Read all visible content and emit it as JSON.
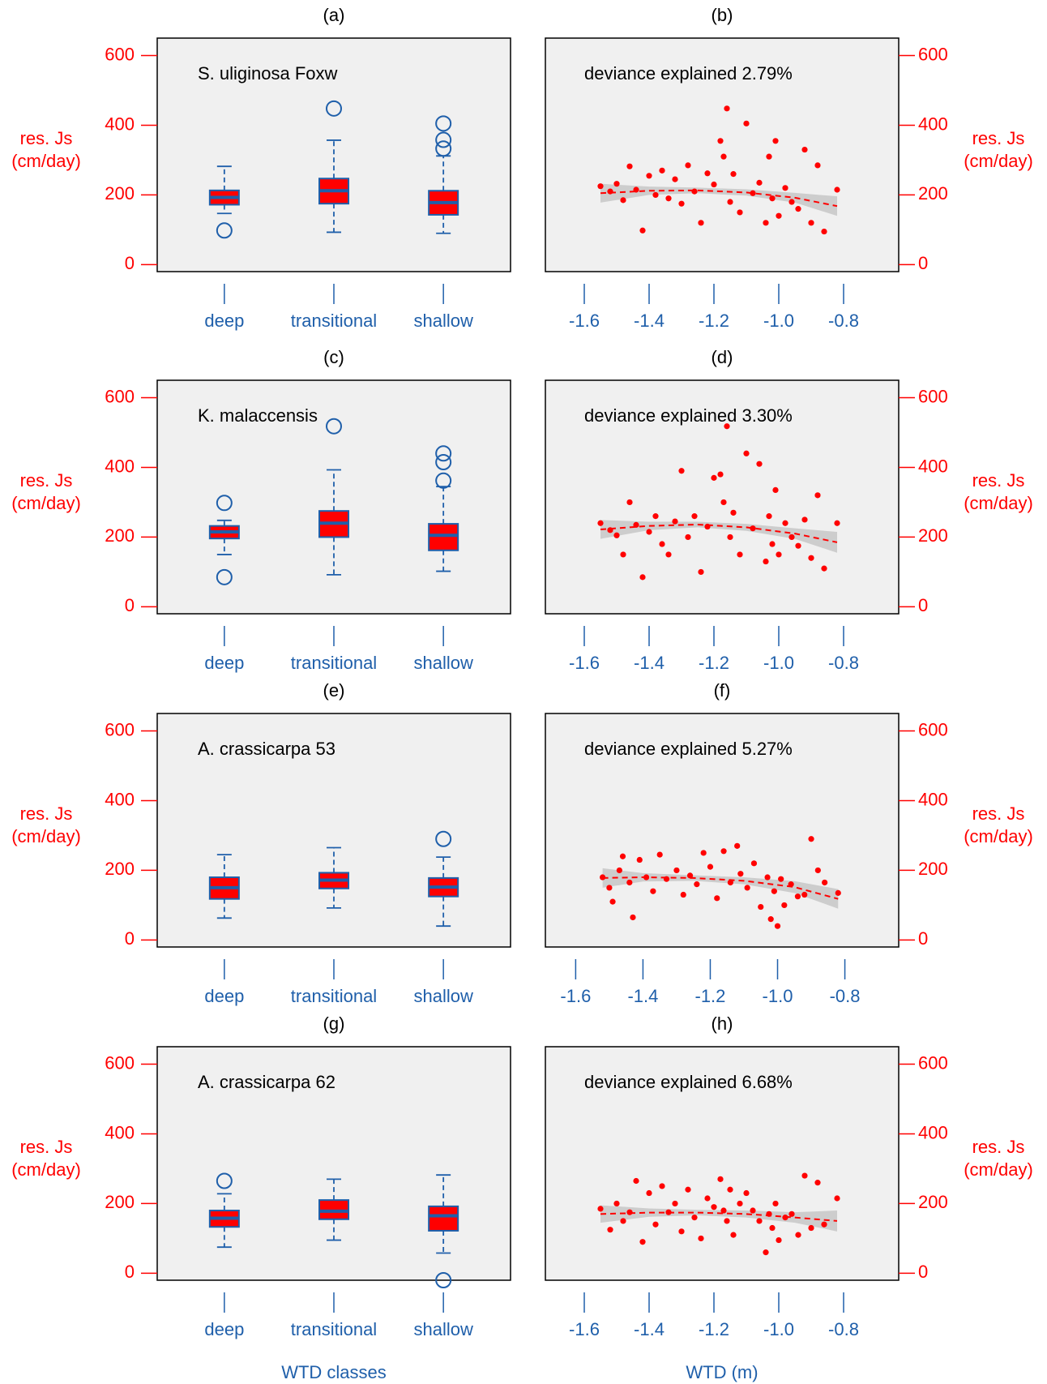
{
  "chart_data": [
    {
      "type": "box",
      "label": "(a)",
      "annotation": "S. uliginosa Foxw",
      "y_label": [
        "res. Js",
        "(cm/day)"
      ],
      "categories": [
        "deep",
        "transitional",
        "shallow"
      ],
      "boxes": [
        {
          "whislo": 147,
          "q1": 172,
          "med": 193,
          "q3": 213,
          "whishi": 282,
          "fliers": [
            98
          ]
        },
        {
          "whislo": 93,
          "q1": 175,
          "med": 212,
          "q3": 247,
          "whishi": 357,
          "fliers": [
            448
          ]
        },
        {
          "whislo": 90,
          "q1": 143,
          "med": 178,
          "q3": 212,
          "whishi": 312,
          "fliers": [
            405,
            358,
            333
          ]
        }
      ],
      "ylim": [
        -20,
        650
      ],
      "yticks": [
        0,
        200,
        400,
        600
      ],
      "color": "#ff0000",
      "edge_color": "#1f5faa"
    },
    {
      "type": "scatter",
      "label": "(b)",
      "annotation": "deviance explained 2.79%",
      "y_label": [
        "res. Js",
        "(cm/day)"
      ],
      "x": [
        -1.55,
        -1.52,
        -1.5,
        -1.48,
        -1.46,
        -1.44,
        -1.42,
        -1.4,
        -1.38,
        -1.36,
        -1.34,
        -1.32,
        -1.3,
        -1.28,
        -1.26,
        -1.24,
        -1.22,
        -1.2,
        -1.18,
        -1.17,
        -1.16,
        -1.15,
        -1.14,
        -1.12,
        -1.1,
        -1.08,
        -1.06,
        -1.04,
        -1.03,
        -1.02,
        -1.01,
        -1.0,
        -0.98,
        -0.96,
        -0.94,
        -0.92,
        -0.9,
        -0.88,
        -0.86,
        -0.82
      ],
      "y": [
        225,
        210,
        232,
        185,
        282,
        215,
        98,
        255,
        200,
        270,
        190,
        245,
        175,
        285,
        210,
        120,
        262,
        230,
        355,
        310,
        448,
        180,
        260,
        150,
        405,
        205,
        235,
        120,
        310,
        190,
        355,
        140,
        220,
        180,
        160,
        330,
        120,
        285,
        95,
        215
      ],
      "fit": {
        "x": [
          -1.55,
          -1.4,
          -1.25,
          -1.1,
          -0.95,
          -0.82
        ],
        "values": [
          205,
          212,
          213,
          207,
          192,
          168
        ],
        "lower": [
          178,
          200,
          205,
          198,
          178,
          140
        ],
        "upper": [
          232,
          224,
          221,
          216,
          206,
          196
        ]
      },
      "xlim": [
        -1.72,
        -0.63
      ],
      "xticks": [
        -1.6,
        -1.4,
        -1.2,
        {
          "value": -1,
          "label": "-1.0"
        },
        -0.8
      ],
      "ylim": [
        -20,
        650
      ],
      "yticks": [
        0,
        200,
        400,
        600
      ],
      "color": "#ff0000"
    },
    {
      "type": "box",
      "label": "(c)",
      "annotation": "K. malaccensis",
      "y_label": [
        "res. Js",
        "(cm/day)"
      ],
      "categories": [
        "deep",
        "transitional",
        "shallow"
      ],
      "boxes": [
        {
          "whislo": 150,
          "q1": 196,
          "med": 215,
          "q3": 232,
          "whishi": 248,
          "fliers": [
            298,
            85
          ]
        },
        {
          "whislo": 92,
          "q1": 200,
          "med": 240,
          "q3": 275,
          "whishi": 393,
          "fliers": [
            518
          ]
        },
        {
          "whislo": 102,
          "q1": 162,
          "med": 205,
          "q3": 238,
          "whishi": 345,
          "fliers": [
            440,
            415,
            362
          ]
        }
      ],
      "ylim": [
        -20,
        650
      ],
      "yticks": [
        0,
        200,
        400,
        600
      ],
      "color": "#ff0000",
      "edge_color": "#1f5faa"
    },
    {
      "type": "scatter",
      "label": "(d)",
      "annotation": "deviance explained 3.30%",
      "y_label": [
        "res. Js",
        "(cm/day)"
      ],
      "x": [
        -1.55,
        -1.52,
        -1.5,
        -1.48,
        -1.46,
        -1.44,
        -1.42,
        -1.4,
        -1.38,
        -1.36,
        -1.34,
        -1.32,
        -1.3,
        -1.28,
        -1.26,
        -1.24,
        -1.22,
        -1.2,
        -1.18,
        -1.17,
        -1.16,
        -1.15,
        -1.14,
        -1.12,
        -1.1,
        -1.08,
        -1.06,
        -1.04,
        -1.03,
        -1.02,
        -1.01,
        -1.0,
        -0.98,
        -0.96,
        -0.94,
        -0.92,
        -0.9,
        -0.88,
        -0.86,
        -0.82
      ],
      "y": [
        240,
        220,
        205,
        150,
        300,
        235,
        85,
        215,
        260,
        180,
        150,
        245,
        390,
        200,
        260,
        100,
        230,
        370,
        380,
        300,
        518,
        200,
        270,
        150,
        440,
        225,
        410,
        130,
        260,
        180,
        335,
        150,
        240,
        200,
        175,
        250,
        140,
        320,
        110,
        240
      ],
      "fit": {
        "x": [
          -1.55,
          -1.4,
          -1.25,
          -1.1,
          -0.95,
          -0.82
        ],
        "values": [
          222,
          232,
          236,
          228,
          210,
          185
        ],
        "lower": [
          195,
          220,
          228,
          218,
          195,
          155
        ],
        "upper": [
          249,
          244,
          244,
          238,
          225,
          215
        ]
      },
      "xlim": [
        -1.72,
        -0.63
      ],
      "xticks": [
        -1.6,
        -1.4,
        -1.2,
        {
          "value": -1,
          "label": "-1.0"
        },
        -0.8
      ],
      "ylim": [
        -20,
        650
      ],
      "yticks": [
        0,
        200,
        400,
        600
      ],
      "color": "#ff0000"
    },
    {
      "type": "box",
      "label": "(e)",
      "annotation": "A. crassicarpa 53",
      "y_label": [
        "res. Js",
        "(cm/day)"
      ],
      "categories": [
        "deep",
        "transitional",
        "shallow"
      ],
      "boxes": [
        {
          "whislo": 63,
          "q1": 118,
          "med": 150,
          "q3": 180,
          "whishi": 245,
          "fliers": []
        },
        {
          "whislo": 92,
          "q1": 148,
          "med": 172,
          "q3": 193,
          "whishi": 265,
          "fliers": []
        },
        {
          "whislo": 40,
          "q1": 125,
          "med": 152,
          "q3": 178,
          "whishi": 238,
          "fliers": [
            290
          ]
        }
      ],
      "ylim": [
        -20,
        650
      ],
      "yticks": [
        0,
        200,
        400,
        600
      ],
      "color": "#ff0000",
      "edge_color": "#1f5faa"
    },
    {
      "type": "scatter",
      "label": "(f)",
      "annotation": "deviance explained 5.27%",
      "y_label": [
        "res. Js",
        "(cm/day)"
      ],
      "x": [
        -1.52,
        -1.5,
        -1.49,
        -1.47,
        -1.46,
        -1.44,
        -1.43,
        -1.41,
        -1.39,
        -1.37,
        -1.35,
        -1.33,
        -1.3,
        -1.28,
        -1.26,
        -1.24,
        -1.22,
        -1.2,
        -1.18,
        -1.16,
        -1.14,
        -1.12,
        -1.11,
        -1.09,
        -1.07,
        -1.05,
        -1.03,
        -1.02,
        -1.01,
        -1.0,
        -0.99,
        -0.98,
        -0.96,
        -0.94,
        -0.92,
        -0.9,
        -0.88,
        -0.86,
        -0.82
      ],
      "y": [
        180,
        150,
        110,
        200,
        240,
        165,
        65,
        230,
        180,
        140,
        245,
        175,
        200,
        130,
        185,
        160,
        250,
        210,
        120,
        255,
        165,
        270,
        190,
        150,
        220,
        95,
        180,
        60,
        140,
        40,
        175,
        100,
        160,
        125,
        130,
        290,
        200,
        165,
        135
      ],
      "fit": {
        "x": [
          -1.52,
          -1.4,
          -1.25,
          -1.1,
          -0.95,
          -0.82
        ],
        "values": [
          178,
          180,
          178,
          170,
          152,
          118
        ],
        "lower": [
          150,
          168,
          170,
          160,
          135,
          90
        ],
        "upper": [
          206,
          192,
          186,
          180,
          169,
          146
        ]
      },
      "xlim": [
        -1.69,
        -0.64
      ],
      "xticks": [
        -1.6,
        -1.4,
        -1.2,
        {
          "value": -1,
          "label": "-1.0"
        },
        -0.8
      ],
      "ylim": [
        -20,
        650
      ],
      "yticks": [
        0,
        200,
        400,
        600
      ],
      "color": "#ff0000"
    },
    {
      "type": "box",
      "label": "(g)",
      "annotation": "A. crassicarpa 62",
      "y_label": [
        "res. Js",
        "(cm/day)"
      ],
      "x_label": "WTD classes",
      "categories": [
        "deep",
        "transitional",
        "shallow"
      ],
      "boxes": [
        {
          "whislo": 75,
          "q1": 133,
          "med": 158,
          "q3": 180,
          "whishi": 228,
          "fliers": [
            265
          ]
        },
        {
          "whislo": 95,
          "q1": 155,
          "med": 178,
          "q3": 210,
          "whishi": 270,
          "fliers": []
        },
        {
          "whislo": 58,
          "q1": 122,
          "med": 165,
          "q3": 192,
          "whishi": 282,
          "fliers": [
            -20
          ]
        }
      ],
      "ylim": [
        -20,
        650
      ],
      "yticks": [
        0,
        200,
        400,
        600
      ],
      "color": "#ff0000",
      "edge_color": "#1f5faa"
    },
    {
      "type": "scatter",
      "label": "(h)",
      "annotation": "deviance explained 6.68%",
      "y_label": [
        "res. Js",
        "(cm/day)"
      ],
      "x_label": "WTD (m)",
      "x": [
        -1.55,
        -1.52,
        -1.5,
        -1.48,
        -1.46,
        -1.44,
        -1.42,
        -1.4,
        -1.38,
        -1.36,
        -1.34,
        -1.32,
        -1.3,
        -1.28,
        -1.26,
        -1.24,
        -1.22,
        -1.2,
        -1.18,
        -1.17,
        -1.16,
        -1.15,
        -1.14,
        -1.12,
        -1.1,
        -1.08,
        -1.06,
        -1.04,
        -1.03,
        -1.02,
        -1.01,
        -1.0,
        -0.98,
        -0.96,
        -0.94,
        -0.92,
        -0.9,
        -0.88,
        -0.86,
        -0.82
      ],
      "y": [
        185,
        125,
        200,
        150,
        175,
        265,
        90,
        230,
        140,
        250,
        175,
        200,
        120,
        240,
        160,
        100,
        215,
        190,
        270,
        180,
        150,
        240,
        110,
        200,
        230,
        180,
        150,
        60,
        170,
        130,
        200,
        95,
        160,
        170,
        110,
        280,
        130,
        260,
        140,
        215
      ],
      "fit": {
        "x": [
          -1.55,
          -1.4,
          -1.25,
          -1.1,
          -0.95,
          -0.82
        ],
        "values": [
          170,
          174,
          174,
          170,
          160,
          150
        ],
        "lower": [
          145,
          162,
          166,
          160,
          145,
          120
        ],
        "upper": [
          195,
          186,
          182,
          180,
          175,
          180
        ]
      },
      "xlim": [
        -1.72,
        -0.63
      ],
      "xticks": [
        -1.6,
        -1.4,
        -1.2,
        {
          "value": -1,
          "label": "-1.0"
        },
        -0.8
      ],
      "ylim": [
        -20,
        650
      ],
      "yticks": [
        0,
        200,
        400,
        600
      ],
      "color": "#ff0000"
    }
  ]
}
